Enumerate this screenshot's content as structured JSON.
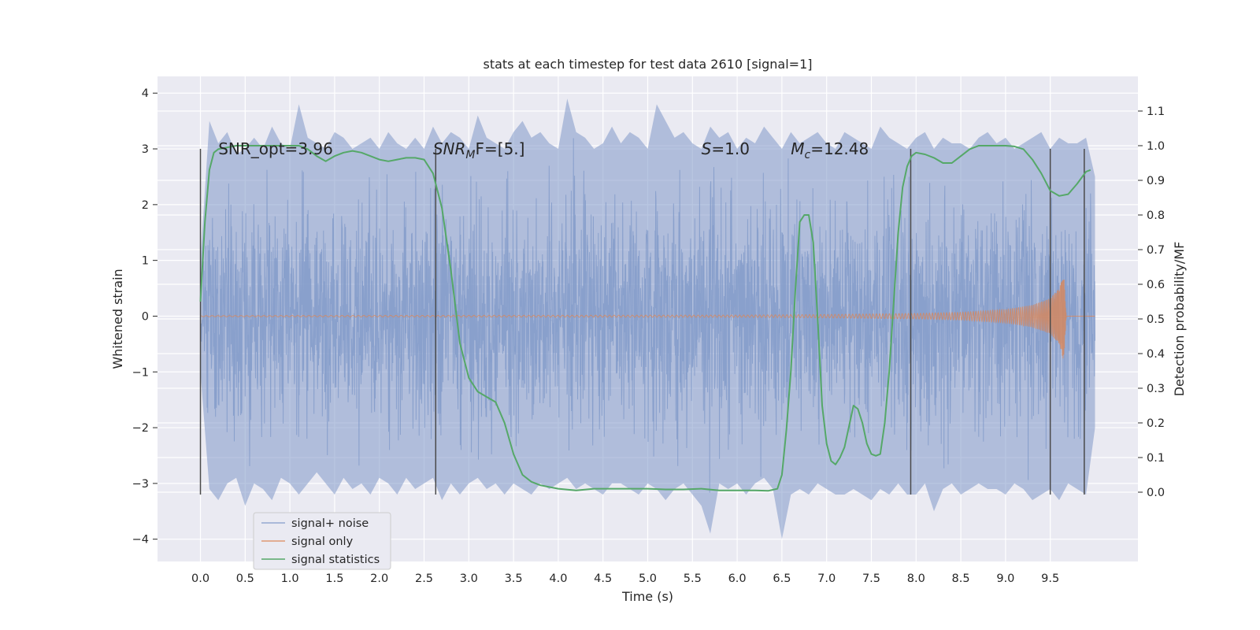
{
  "chart_data": {
    "type": "line",
    "title": "stats at each timestep for test data 2610 [signal=1]",
    "xlabel": "Time (s)",
    "ylabel": "Whitened strain",
    "ylabel_right": "Detection probability/MF",
    "xlim": [
      -0.48,
      10.48
    ],
    "ylim": [
      -4.4,
      4.3
    ],
    "ylim_right": [
      -0.2,
      1.2
    ],
    "x_ticks": [
      "0.0",
      "0.5",
      "1.0",
      "1.5",
      "2.0",
      "2.5",
      "3.0",
      "3.5",
      "4.0",
      "4.5",
      "5.0",
      "5.5",
      "6.0",
      "6.5",
      "7.0",
      "7.5",
      "8.0",
      "8.5",
      "9.0",
      "9.5"
    ],
    "y_ticks": [
      "4",
      "3",
      "2",
      "1",
      "0",
      "−1",
      "−2",
      "−3",
      "−4"
    ],
    "y_ticks_right": [
      "0.0",
      "0.1",
      "0.2",
      "0.3",
      "0.4",
      "0.5",
      "0.6",
      "0.7",
      "0.8",
      "0.9",
      "1.0",
      "1.1"
    ],
    "grid": true,
    "legend_position": "lower-left",
    "annotations": [
      {
        "text": "SNR_opt=3.96",
        "x": 0.2,
        "y": 2.9
      },
      {
        "text": "SNR",
        "sub": "M",
        "tail": "F=[5.]",
        "italic_head": true,
        "x": 2.6,
        "y": 2.9
      },
      {
        "text": "S",
        "tail": "=1.0",
        "italic_head": true,
        "x": 5.6,
        "y": 2.9
      },
      {
        "text": "M",
        "sub": "c",
        "tail": "=12.48",
        "italic_head": true,
        "x": 6.6,
        "y": 2.9
      }
    ],
    "vlines": [
      0.0,
      2.63,
      7.94,
      9.5,
      9.88
    ],
    "vline_range": [
      -3.2,
      3.0
    ],
    "series": [
      {
        "name": "signal+ noise",
        "color": "#7f98c8",
        "x_range": [
          0.0,
          10.0
        ],
        "envelope_upper": [
          1.0,
          3.5,
          3.1,
          3.3,
          2.9,
          3.0,
          3.2,
          3.0,
          3.4,
          3.1,
          3.0,
          3.8,
          3.2,
          3.1,
          3.0,
          3.3,
          3.2,
          3.0,
          3.1,
          3.2,
          3.0,
          3.3,
          3.1,
          3.0,
          3.2,
          3.0,
          3.4,
          3.1,
          3.3,
          3.2,
          3.0,
          3.6,
          3.2,
          3.1,
          3.0,
          3.3,
          3.5,
          3.2,
          3.3,
          3.1,
          3.0,
          3.9,
          3.3,
          3.2,
          3.0,
          3.1,
          3.4,
          3.1,
          3.3,
          3.2,
          3.0,
          3.8,
          3.5,
          3.2,
          3.3,
          3.1,
          3.0,
          3.4,
          3.2,
          3.3,
          3.0,
          3.2,
          3.1,
          3.4,
          3.2,
          3.0,
          3.3,
          3.1,
          3.2,
          3.3,
          3.1,
          3.0,
          3.3,
          3.2,
          3.1,
          3.0,
          3.4,
          3.2,
          3.1,
          3.0,
          3.2,
          3.3,
          3.0,
          3.2,
          3.1,
          3.1,
          3.0,
          3.2,
          3.3,
          3.1,
          3.2,
          3.0,
          3.1,
          3.2,
          3.3,
          3.0,
          3.2,
          3.1,
          3.1,
          3.2,
          2.5
        ],
        "envelope_lower": [
          -1.0,
          -3.1,
          -3.3,
          -3.0,
          -2.9,
          -3.4,
          -3.0,
          -3.1,
          -3.3,
          -2.9,
          -3.0,
          -3.2,
          -3.0,
          -2.8,
          -3.0,
          -3.2,
          -2.9,
          -3.1,
          -3.0,
          -3.2,
          -2.9,
          -3.0,
          -3.2,
          -2.9,
          -3.1,
          -3.0,
          -2.9,
          -3.3,
          -3.0,
          -3.2,
          -3.0,
          -2.9,
          -3.1,
          -3.0,
          -3.2,
          -3.0,
          -3.1,
          -3.2,
          -3.0,
          -3.1,
          -3.0,
          -2.9,
          -3.1,
          -3.0,
          -3.1,
          -3.2,
          -3.0,
          -3.0,
          -3.1,
          -3.2,
          -3.0,
          -3.1,
          -3.3,
          -3.1,
          -3.0,
          -3.2,
          -3.4,
          -3.9,
          -3.0,
          -3.1,
          -3.0,
          -3.2,
          -3.0,
          -2.9,
          -3.1,
          -4.0,
          -3.2,
          -3.1,
          -3.2,
          -3.0,
          -3.1,
          -3.2,
          -3.2,
          -3.1,
          -3.2,
          -3.3,
          -3.1,
          -3.2,
          -3.0,
          -3.2,
          -3.2,
          -3.0,
          -3.5,
          -3.1,
          -3.0,
          -3.2,
          -3.1,
          -3.0,
          -3.1,
          -3.1,
          -3.2,
          -3.0,
          -3.1,
          -3.3,
          -3.2,
          -3.1,
          -3.3,
          -3.0,
          -3.1,
          -3.2,
          -2.0
        ]
      },
      {
        "name": "signal only",
        "color": "#dd8452",
        "x_range": [
          0.0,
          10.0
        ],
        "chirp_end": 9.68,
        "amplitude_envelope": [
          [
            0.0,
            0.01
          ],
          [
            6.0,
            0.02
          ],
          [
            7.0,
            0.03
          ],
          [
            8.0,
            0.05
          ],
          [
            8.5,
            0.07
          ],
          [
            9.0,
            0.12
          ],
          [
            9.3,
            0.2
          ],
          [
            9.5,
            0.32
          ],
          [
            9.6,
            0.5
          ],
          [
            9.65,
            0.8
          ],
          [
            9.68,
            0.0
          ],
          [
            10.0,
            0.0
          ]
        ]
      },
      {
        "name": "signal statistics",
        "color": "#55a868",
        "axis": "right",
        "x": [
          0.0,
          0.05,
          0.1,
          0.15,
          0.2,
          0.3,
          0.4,
          0.5,
          0.6,
          0.7,
          0.8,
          0.9,
          1.0,
          1.1,
          1.2,
          1.3,
          1.4,
          1.5,
          1.6,
          1.7,
          1.8,
          1.9,
          2.0,
          2.1,
          2.2,
          2.3,
          2.4,
          2.5,
          2.6,
          2.7,
          2.8,
          2.9,
          3.0,
          3.1,
          3.2,
          3.3,
          3.4,
          3.5,
          3.6,
          3.7,
          3.8,
          4.0,
          4.2,
          4.4,
          4.6,
          4.8,
          5.0,
          5.2,
          5.4,
          5.6,
          5.8,
          6.0,
          6.2,
          6.35,
          6.45,
          6.5,
          6.55,
          6.6,
          6.65,
          6.7,
          6.75,
          6.8,
          6.85,
          6.9,
          6.95,
          7.0,
          7.05,
          7.1,
          7.15,
          7.2,
          7.3,
          7.35,
          7.4,
          7.45,
          7.5,
          7.55,
          7.6,
          7.65,
          7.7,
          7.75,
          7.8,
          7.85,
          7.9,
          7.95,
          8.0,
          8.1,
          8.2,
          8.3,
          8.4,
          8.5,
          8.6,
          8.7,
          8.8,
          8.9,
          9.0,
          9.1,
          9.2,
          9.3,
          9.4,
          9.5,
          9.6,
          9.7,
          9.8,
          9.9,
          9.95
        ],
        "y": [
          0.55,
          0.78,
          0.93,
          0.98,
          0.99,
          0.995,
          1.0,
          1.0,
          1.0,
          1.0,
          1.0,
          1.0,
          1.0,
          1.0,
          0.99,
          0.97,
          0.955,
          0.97,
          0.98,
          0.985,
          0.98,
          0.97,
          0.96,
          0.955,
          0.96,
          0.965,
          0.965,
          0.96,
          0.92,
          0.82,
          0.64,
          0.43,
          0.33,
          0.29,
          0.275,
          0.26,
          0.2,
          0.11,
          0.05,
          0.03,
          0.02,
          0.01,
          0.005,
          0.01,
          0.01,
          0.01,
          0.01,
          0.008,
          0.008,
          0.01,
          0.005,
          0.005,
          0.005,
          0.004,
          0.01,
          0.05,
          0.18,
          0.35,
          0.58,
          0.78,
          0.8,
          0.8,
          0.72,
          0.5,
          0.25,
          0.14,
          0.09,
          0.08,
          0.1,
          0.13,
          0.25,
          0.24,
          0.2,
          0.14,
          0.11,
          0.105,
          0.11,
          0.2,
          0.35,
          0.55,
          0.75,
          0.88,
          0.94,
          0.97,
          0.98,
          0.975,
          0.965,
          0.95,
          0.95,
          0.97,
          0.99,
          1.0,
          1.0,
          1.0,
          1.0,
          0.998,
          0.99,
          0.96,
          0.92,
          0.87,
          0.855,
          0.86,
          0.89,
          0.925,
          0.93
        ]
      }
    ]
  }
}
